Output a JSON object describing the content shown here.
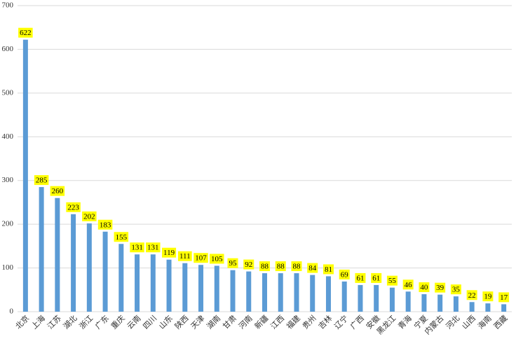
{
  "chart_data": {
    "type": "bar",
    "categories": [
      "北京",
      "上海",
      "江苏",
      "湖北",
      "浙江",
      "广东",
      "重庆",
      "云南",
      "四川",
      "山东",
      "陕西",
      "天津",
      "湖南",
      "甘肃",
      "河南",
      "新疆",
      "江西",
      "福建",
      "贵州",
      "吉林",
      "辽宁",
      "广西",
      "安徽",
      "黑龙江",
      "青海",
      "宁夏",
      "内蒙古",
      "河北",
      "山西",
      "海南",
      "西藏"
    ],
    "values": [
      622,
      285,
      260,
      223,
      202,
      183,
      155,
      131,
      131,
      119,
      111,
      107,
      105,
      95,
      92,
      88,
      88,
      88,
      84,
      81,
      69,
      61,
      61,
      55,
      46,
      40,
      39,
      35,
      22,
      19,
      17
    ],
    "color": "#5b9bd5",
    "label_color": "#ffff00",
    "ylim": [
      0,
      700
    ],
    "yticks": [
      0,
      100,
      200,
      300,
      400,
      500,
      600,
      700
    ],
    "grid": true
  }
}
